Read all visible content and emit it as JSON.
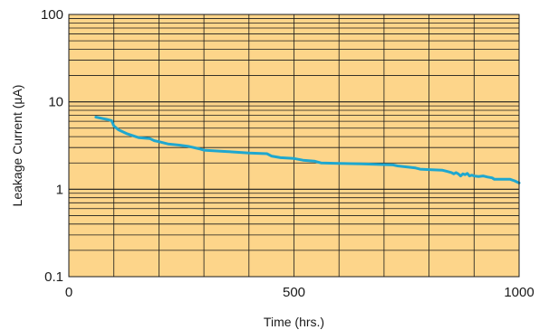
{
  "chart_data": {
    "type": "line",
    "title": "",
    "xlabel": "Time (hrs.)",
    "ylabel": "Leakage Current (µA)",
    "xlim": [
      0,
      1000
    ],
    "ylim": [
      0.1,
      100
    ],
    "y_scale": "log",
    "x_ticks": [
      "0",
      "500",
      "1000"
    ],
    "y_ticks": [
      "0.1",
      "1",
      "10",
      "100"
    ],
    "grid": true,
    "colors": {
      "plot_background": "#fdd58a",
      "grid": "#1a1a1a",
      "line": "#1fa7cf"
    },
    "series": [
      {
        "x": [
          60,
          85,
          95,
          100,
          110,
          130,
          155,
          180,
          190,
          200,
          220,
          245,
          265,
          290,
          300,
          350,
          400,
          440,
          450,
          470,
          500,
          520,
          545,
          560,
          600,
          650,
          720,
          730,
          770,
          780,
          800,
          830,
          840,
          850,
          855,
          860,
          865,
          870,
          875,
          880,
          885,
          890,
          895,
          900,
          910,
          920,
          930,
          940,
          945,
          950,
          960,
          980,
          990,
          1000
        ],
        "y": [
          6.7,
          6.3,
          6.1,
          5.3,
          4.8,
          4.3,
          3.9,
          3.8,
          3.6,
          3.5,
          3.3,
          3.2,
          3.1,
          2.9,
          2.8,
          2.7,
          2.6,
          2.55,
          2.4,
          2.3,
          2.25,
          2.15,
          2.1,
          2.0,
          1.98,
          1.95,
          1.9,
          1.85,
          1.75,
          1.7,
          1.68,
          1.65,
          1.6,
          1.55,
          1.5,
          1.55,
          1.5,
          1.42,
          1.5,
          1.47,
          1.52,
          1.42,
          1.45,
          1.42,
          1.4,
          1.42,
          1.38,
          1.35,
          1.3,
          1.3,
          1.3,
          1.3,
          1.25,
          1.18
        ]
      }
    ]
  }
}
